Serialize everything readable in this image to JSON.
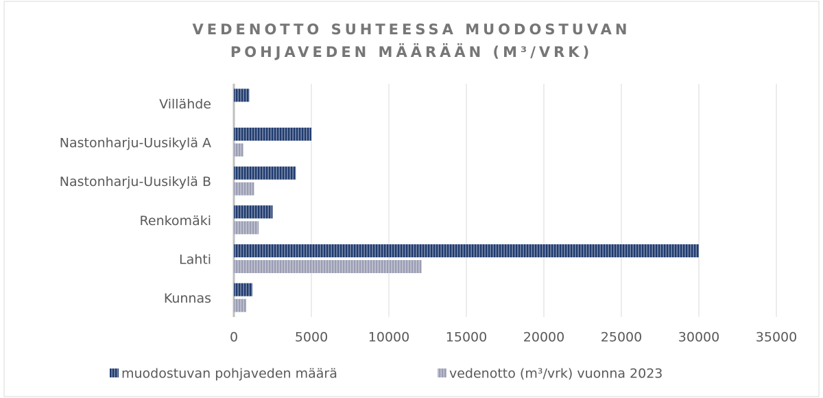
{
  "chart_data": {
    "type": "bar",
    "orientation": "horizontal",
    "title": [
      "VEDENOTTO SUHTEESSA MUODOSTUVAN",
      "POHJAVEDEN MÄÄRÄÄN (M³/VRK)"
    ],
    "categories": [
      "Villähde",
      "Nastonharju-Uusikylä A",
      "Nastonharju-Uusikylä B",
      "Renkomäki",
      "Lahti",
      "Kunnas"
    ],
    "series": [
      {
        "name": "muodostuvan pohjaveden määrä",
        "color": "#1f3a6e",
        "values": [
          1000,
          5000,
          4000,
          2500,
          30000,
          1200
        ]
      },
      {
        "name": "vedenotto (m³/vrk) vuonna 2023",
        "color": "#9a9db3",
        "values": [
          null,
          600,
          1300,
          1600,
          12100,
          800
        ]
      }
    ],
    "xlim": [
      0,
      35000
    ],
    "xticks": [
      0,
      5000,
      10000,
      15000,
      20000,
      25000,
      30000,
      35000
    ],
    "grid": true,
    "legend": "bottom"
  }
}
